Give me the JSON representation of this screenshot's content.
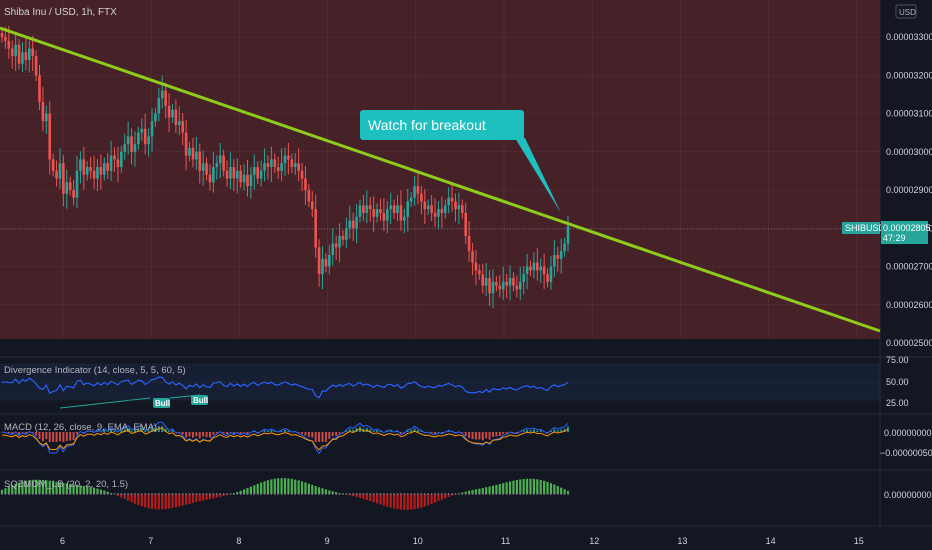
{
  "chart_data": {
    "type": "candlestick",
    "title": "Shiba Inu / USD, 1h, FTX",
    "currency_button": "USD",
    "colors": {
      "background": "#131722",
      "main_pane": "#462128",
      "up": "#26a69a",
      "down": "#ef5350",
      "trendline": "#8ecc1b",
      "callout": "#1ebfbf",
      "rsi_line": "#2962ff"
    },
    "x_ticks": [
      "6",
      "7",
      "8",
      "9",
      "10",
      "11",
      "12",
      "13",
      "14",
      "15"
    ],
    "y_ticks": [
      "0.00003300",
      "0.00003200",
      "0.00003100",
      "0.00003000",
      "0.00002900",
      "0.00002800",
      "0.00002700",
      "0.00002600",
      "0.00002500"
    ],
    "ylim": [
      2.5e-05,
      3.34e-05
    ],
    "price_tag": {
      "symbol": "SHIBUSD",
      "price": "0.00002805",
      "countdown": "47:29"
    },
    "annotation": "Watch for breakout",
    "close_prices": [
      3.3,
      3.29,
      3.27,
      3.25,
      3.28,
      3.23,
      3.26,
      3.24,
      3.27,
      3.25,
      3.2,
      3.13,
      3.08,
      3.1,
      2.98,
      2.95,
      2.93,
      2.97,
      2.89,
      2.92,
      2.9,
      2.88,
      2.95,
      2.98,
      2.94,
      2.96,
      2.95,
      2.93,
      2.96,
      2.94,
      2.97,
      2.95,
      2.99,
      2.98,
      2.96,
      3.0,
      3.02,
      3.04,
      3.0,
      3.02,
      3.05,
      3.06,
      3.02,
      3.04,
      3.08,
      3.1,
      3.14,
      3.16,
      3.12,
      3.09,
      3.11,
      3.07,
      3.08,
      3.05,
      2.99,
      3.01,
      2.98,
      3.0,
      2.95,
      2.97,
      2.94,
      2.92,
      2.96,
      2.97,
      2.99,
      2.95,
      2.93,
      2.96,
      2.93,
      2.95,
      2.92,
      2.94,
      2.91,
      2.94,
      2.96,
      2.93,
      2.95,
      2.97,
      2.96,
      2.98,
      2.96,
      2.95,
      2.97,
      2.99,
      2.98,
      2.96,
      2.97,
      2.95,
      2.93,
      2.9,
      2.87,
      2.85,
      2.75,
      2.68,
      2.72,
      2.7,
      2.73,
      2.76,
      2.75,
      2.78,
      2.77,
      2.8,
      2.82,
      2.8,
      2.83,
      2.86,
      2.84,
      2.86,
      2.85,
      2.83,
      2.85,
      2.84,
      2.82,
      2.85,
      2.86,
      2.84,
      2.86,
      2.82,
      2.83,
      2.87,
      2.88,
      2.91,
      2.89,
      2.87,
      2.85,
      2.86,
      2.84,
      2.83,
      2.85,
      2.84,
      2.86,
      2.88,
      2.87,
      2.85,
      2.86,
      2.84,
      2.78,
      2.74,
      2.71,
      2.69,
      2.68,
      2.65,
      2.67,
      2.63,
      2.66,
      2.65,
      2.64,
      2.66,
      2.65,
      2.67,
      2.65,
      2.64,
      2.66,
      2.68,
      2.7,
      2.69,
      2.71,
      2.69,
      2.7,
      2.68,
      2.66,
      2.7,
      2.73,
      2.72,
      2.74,
      2.76,
      2.805
    ],
    "trendline": {
      "start": [
        0,
        3.32
      ],
      "end": [
        200,
        2.51
      ],
      "unit_scale": "1e-5",
      "width": 3
    },
    "indicators": [
      {
        "name": "Divergence Indicator (14, close, 5, 5, 60, 5)",
        "ticks": [
          "75.00",
          "50.00",
          "25.00"
        ],
        "labels": [
          "Bull",
          "Bull"
        ]
      },
      {
        "name": "MACD (12, 26, close, 9, EMA, EMA)",
        "ticks": [
          "0.00000000",
          "−0.00000050"
        ]
      },
      {
        "name": "SQZMOM_LB (20, 2, 20, 1.5)",
        "ticks": [
          "0.00000000"
        ]
      }
    ]
  }
}
